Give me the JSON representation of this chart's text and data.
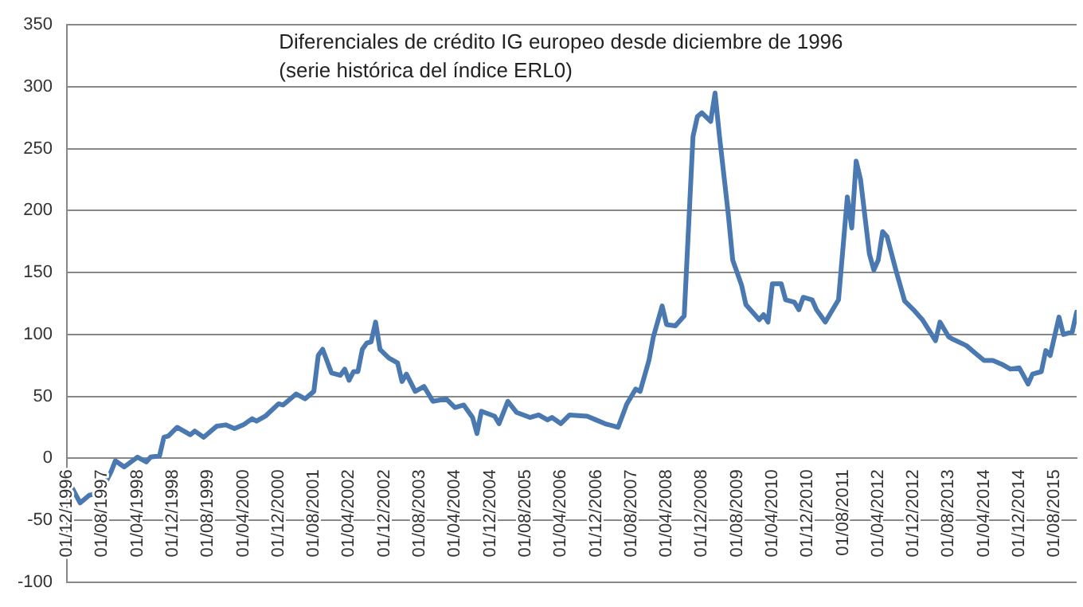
{
  "chart_data": {
    "type": "line",
    "title": "Diferenciales de crédito IG europeo desde diciembre de 1996",
    "subtitle": "(serie histórica del índice ERL0)",
    "x": [
      "1996-12",
      "1997-03",
      "1997-05",
      "1997-07",
      "1997-08",
      "1997-10",
      "1997-11",
      "1998-01",
      "1998-04",
      "1998-06",
      "1998-07",
      "1998-09",
      "1998-10",
      "1998-11",
      "1999-01",
      "1999-04",
      "1999-05",
      "1999-07",
      "1999-08",
      "1999-10",
      "1999-12",
      "2000-02",
      "2000-04",
      "2000-06",
      "2000-07",
      "2000-09",
      "2000-12",
      "2001-01",
      "2001-04",
      "2001-06",
      "2001-08",
      "2001-09",
      "2001-10",
      "2001-12",
      "2002-02",
      "2002-03",
      "2002-04",
      "2002-05",
      "2002-06",
      "2002-07",
      "2002-08",
      "2002-09",
      "2002-10",
      "2002-11",
      "2003-01",
      "2003-03",
      "2003-04",
      "2003-05",
      "2003-07",
      "2003-09",
      "2003-11",
      "2004-02",
      "2004-04",
      "2004-06",
      "2004-08",
      "2004-09",
      "2004-10",
      "2005-01",
      "2005-02",
      "2005-04",
      "2005-06",
      "2005-09",
      "2005-11",
      "2006-01",
      "2006-02",
      "2006-04",
      "2006-06",
      "2006-10",
      "2006-12",
      "2007-02",
      "2007-05",
      "2007-07",
      "2007-09",
      "2007-10",
      "2007-12",
      "2008-01",
      "2008-03",
      "2008-04",
      "2008-06",
      "2008-08",
      "2008-10",
      "2008-11",
      "2008-12",
      "2009-02",
      "2009-03",
      "2009-04",
      "2009-06",
      "2009-07",
      "2009-09",
      "2009-10",
      "2010-01",
      "2010-02",
      "2010-03",
      "2010-04",
      "2010-06",
      "2010-07",
      "2010-09",
      "2010-10",
      "2010-11",
      "2011-01",
      "2011-02",
      "2011-04",
      "2011-07",
      "2011-09",
      "2011-10",
      "2011-11",
      "2011-12",
      "2012-02",
      "2012-03",
      "2012-04",
      "2012-05",
      "2012-06",
      "2012-08",
      "2012-10",
      "2012-12",
      "2013-02",
      "2013-05",
      "2013-06",
      "2013-08",
      "2013-09",
      "2013-12",
      "2014-02",
      "2014-04",
      "2014-06",
      "2014-08",
      "2014-10",
      "2014-12",
      "2015-02",
      "2015-03",
      "2015-05",
      "2015-06",
      "2015-07",
      "2015-09",
      "2015-10",
      "2015-12",
      "2016-01"
    ],
    "series": [
      {
        "color": "#4a78b0",
        "values": [
          -16,
          -36,
          -30,
          -28,
          -25,
          -11,
          -2,
          -7,
          1,
          -3,
          1,
          2,
          17,
          18,
          25,
          19,
          22,
          17,
          20,
          26,
          27,
          24,
          27,
          32,
          30,
          34,
          44,
          43,
          52,
          48,
          54,
          83,
          88,
          69,
          67,
          72,
          63,
          70,
          70,
          88,
          93,
          94,
          110,
          88,
          81,
          77,
          62,
          68,
          54,
          58,
          46,
          48,
          41,
          43,
          33,
          20,
          38,
          34,
          28,
          46,
          37,
          33,
          35,
          31,
          33,
          28,
          35,
          34,
          31,
          28,
          25,
          44,
          56,
          54,
          79,
          98,
          123,
          108,
          107,
          115,
          260,
          276,
          279,
          272,
          295,
          260,
          197,
          160,
          140,
          124,
          112,
          116,
          110,
          141,
          141,
          128,
          126,
          120,
          130,
          128,
          120,
          110,
          128,
          211,
          186,
          240,
          225,
          165,
          152,
          160,
          183,
          179,
          152,
          127,
          120,
          112,
          95,
          110,
          98,
          96,
          91,
          85,
          79,
          79,
          76,
          72,
          73,
          60,
          68,
          70,
          87,
          83,
          114,
          100,
          102,
          118
        ]
      }
    ],
    "xlim": [
      "1996-12",
      "2016-01"
    ],
    "xticks": [
      {
        "value": "1996-12",
        "label": "01/12/1996"
      },
      {
        "value": "1997-08",
        "label": "01/08/1997"
      },
      {
        "value": "1998-04",
        "label": "01/04/1998"
      },
      {
        "value": "1998-12",
        "label": "01/12/1998"
      },
      {
        "value": "1999-08",
        "label": "01/08/1999"
      },
      {
        "value": "2000-04",
        "label": "01/04/2000"
      },
      {
        "value": "2000-12",
        "label": "01/12/2000"
      },
      {
        "value": "2001-08",
        "label": "01/08/2001"
      },
      {
        "value": "2002-04",
        "label": "01/04/2002"
      },
      {
        "value": "2002-12",
        "label": "01/12/2002"
      },
      {
        "value": "2003-08",
        "label": "01/08/2003"
      },
      {
        "value": "2004-04",
        "label": "01/04/2004"
      },
      {
        "value": "2004-12",
        "label": "01/12/2004"
      },
      {
        "value": "2005-08",
        "label": "01/08/2005"
      },
      {
        "value": "2006-04",
        "label": "01/04/2006"
      },
      {
        "value": "2006-12",
        "label": "01/12/2006"
      },
      {
        "value": "2007-08",
        "label": "01/08/2007"
      },
      {
        "value": "2008-04",
        "label": "01/04/2008"
      },
      {
        "value": "2008-12",
        "label": "01/12/2008"
      },
      {
        "value": "2009-08",
        "label": "01/08/2009"
      },
      {
        "value": "2010-04",
        "label": "01/04/2010"
      },
      {
        "value": "2010-12",
        "label": "01/12/2010"
      },
      {
        "value": "2011-08",
        "label": "01/08/2011"
      },
      {
        "value": "2012-04",
        "label": "01/04/2012"
      },
      {
        "value": "2012-12",
        "label": "01/12/2012"
      },
      {
        "value": "2013-08",
        "label": "01/08/2013"
      },
      {
        "value": "2014-04",
        "label": "01/04/2014"
      },
      {
        "value": "2014-12",
        "label": "01/12/2014"
      },
      {
        "value": "2015-08",
        "label": "01/08/2015"
      }
    ],
    "ylim": [
      -100,
      350
    ],
    "yticks": [
      -100,
      -50,
      0,
      50,
      100,
      150,
      200,
      250,
      300,
      350
    ],
    "grid": "y",
    "legend": false,
    "marker": "none",
    "line_style": "solid"
  }
}
